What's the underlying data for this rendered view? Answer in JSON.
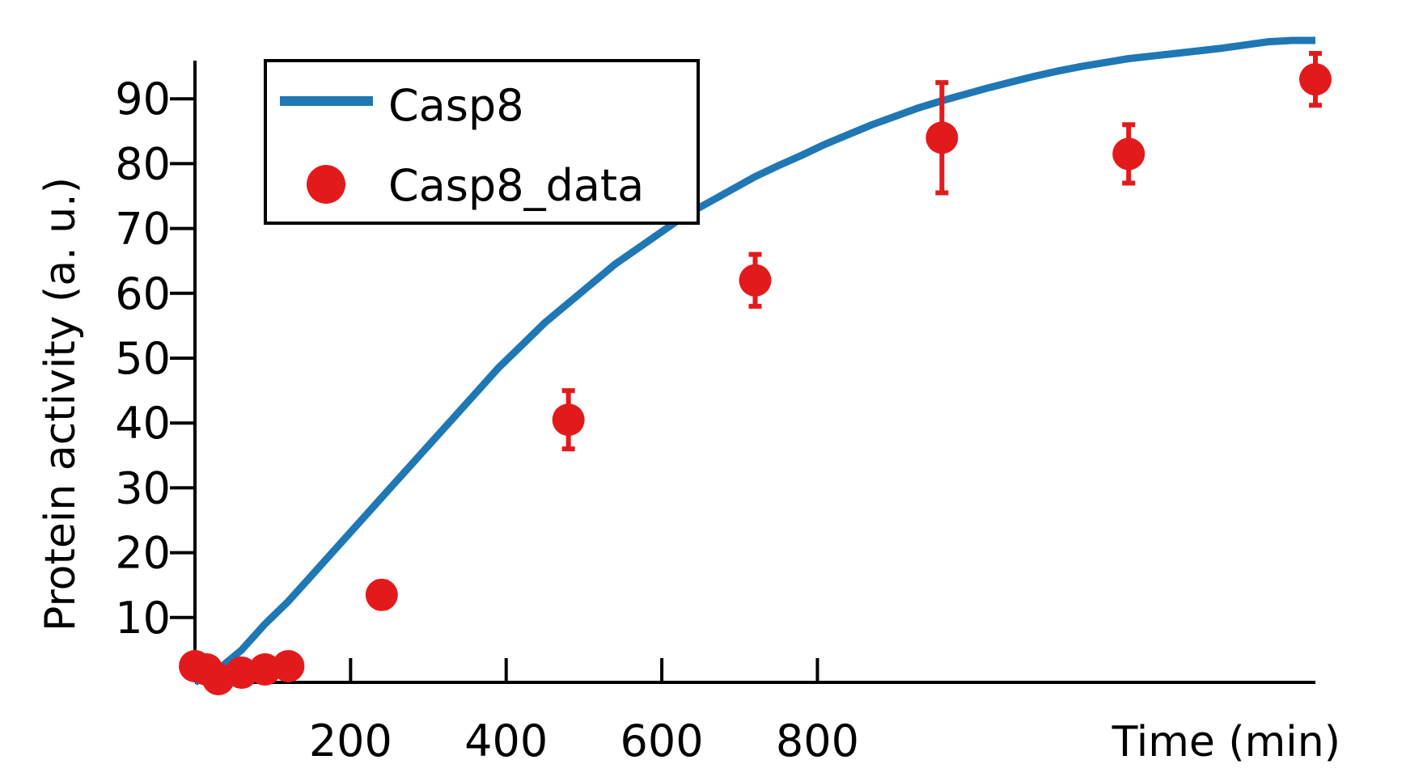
{
  "chart_data": {
    "type": "scatter",
    "xlabel": "Time (min)",
    "ylabel": "Protein activity (a. u.)",
    "xlim": [
      0,
      1440
    ],
    "ylim": [
      0,
      100
    ],
    "xticks": [
      200,
      400,
      600,
      800
    ],
    "yticks": [
      10,
      20,
      30,
      40,
      50,
      60,
      70,
      80,
      90
    ],
    "legend_position": "top-left",
    "grid": false,
    "series": [
      {
        "name": "Casp8",
        "kind": "line",
        "color": "#1f77b4",
        "x": [
          0,
          30,
          60,
          90,
          120,
          150,
          180,
          210,
          240,
          270,
          300,
          330,
          360,
          390,
          420,
          450,
          480,
          510,
          540,
          570,
          600,
          630,
          660,
          690,
          720,
          750,
          780,
          810,
          840,
          870,
          900,
          930,
          960,
          990,
          1020,
          1050,
          1080,
          1110,
          1140,
          1170,
          1200,
          1230,
          1260,
          1290,
          1320,
          1350,
          1380,
          1410,
          1440
        ],
        "y": [
          0,
          2,
          5,
          9,
          12.5,
          16.5,
          20.5,
          24.5,
          28.5,
          32.5,
          36.5,
          40.5,
          44.5,
          48.5,
          52,
          55.5,
          58.5,
          61.5,
          64.5,
          67,
          69.5,
          72,
          74,
          76,
          78,
          79.7,
          81.3,
          83,
          84.5,
          86,
          87.3,
          88.6,
          89.7,
          90.7,
          91.7,
          92.6,
          93.5,
          94.3,
          95,
          95.6,
          96.2,
          96.6,
          97.0,
          97.4,
          97.8,
          98.3,
          98.8,
          99.0,
          99.0
        ]
      },
      {
        "name": "Casp8_data",
        "kind": "scatter",
        "color": "#e31a1c",
        "x": [
          0,
          15,
          30,
          60,
          90,
          120,
          240,
          480,
          720,
          960,
          1200,
          1440
        ],
        "y": [
          2.5,
          2,
          0.5,
          1.5,
          2,
          2.5,
          13.5,
          40.5,
          62,
          84,
          81.5,
          93
        ],
        "err": [
          0,
          0,
          0,
          0,
          0,
          0,
          2,
          4.5,
          4,
          8.5,
          4.5,
          4
        ]
      }
    ]
  }
}
